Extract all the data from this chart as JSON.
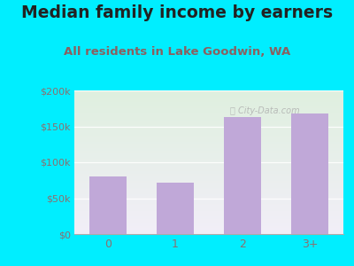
{
  "title": "Median family income by earners",
  "subtitle": "All residents in Lake Goodwin, WA",
  "categories": [
    "0",
    "1",
    "2",
    "3+"
  ],
  "values": [
    80000,
    72000,
    163000,
    168000
  ],
  "bar_color": "#c0a8d8",
  "ylim": [
    0,
    200000
  ],
  "yticks": [
    0,
    50000,
    100000,
    150000,
    200000
  ],
  "ytick_labels": [
    "$0",
    "$50k",
    "$100k",
    "$150k",
    "$200k"
  ],
  "background_outer": "#00eeff",
  "background_inner_top": "#dff0df",
  "background_inner_bottom": "#f2eef8",
  "title_color": "#222222",
  "subtitle_color": "#8b6060",
  "tick_color": "#8b7070",
  "watermark": "City-Data.com",
  "title_fontsize": 13.5,
  "subtitle_fontsize": 9.5
}
